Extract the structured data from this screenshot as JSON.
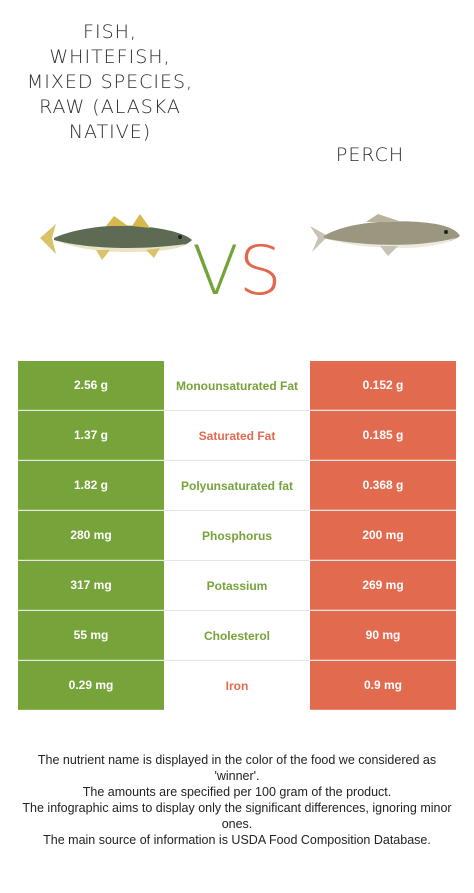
{
  "left_food": {
    "title": "FISH, WHITEFISH, MIXED SPECIES, RAW (ALASKA NATIVE)",
    "image_icon": "fish-illustration"
  },
  "right_food": {
    "title": "PERCH",
    "image_icon": "perch-illustration"
  },
  "vs": {
    "v": "V",
    "s": "S"
  },
  "colors": {
    "left": "#76a33a",
    "right": "#e26a4f"
  },
  "rows": [
    {
      "left": "2.56 g",
      "nutrient": "Monounsaturated Fat",
      "right": "0.152 g",
      "winner": "left"
    },
    {
      "left": "1.37 g",
      "nutrient": "Saturated Fat",
      "right": "0.185 g",
      "winner": "right"
    },
    {
      "left": "1.82 g",
      "nutrient": "Polyunsaturated fat",
      "right": "0.368 g",
      "winner": "left"
    },
    {
      "left": "280 mg",
      "nutrient": "Phosphorus",
      "right": "200 mg",
      "winner": "left"
    },
    {
      "left": "317 mg",
      "nutrient": "Potassium",
      "right": "269 mg",
      "winner": "left"
    },
    {
      "left": "55 mg",
      "nutrient": "Cholesterol",
      "right": "90 mg",
      "winner": "left"
    },
    {
      "left": "0.29 mg",
      "nutrient": "Iron",
      "right": "0.9 mg",
      "winner": "right"
    }
  ],
  "footer": {
    "line1": "The nutrient name is displayed in the color of the food we considered as 'winner'.",
    "line2": "The amounts are specified per 100 gram of the product.",
    "line3": "The infographic aims to display only the significant differences, ignoring minor ones.",
    "line4": "The main source of information is USDA Food Composition Database."
  }
}
